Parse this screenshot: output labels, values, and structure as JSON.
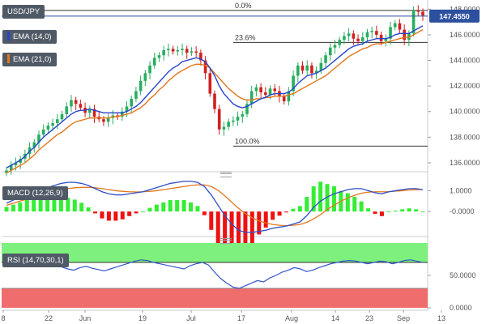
{
  "panel_labels": {
    "symbol": "USD/JPY",
    "ema_fast": "EMA (14,0)",
    "ema_slow": "EMA (21,0)",
    "macd": "MACD (12,26,9)",
    "rsi": "RSI (14,70,30,1)"
  },
  "colors": {
    "bull": "#27ae5f",
    "bear": "#d11f1f",
    "ema_fast": "#2744cc",
    "ema_slow": "#e2771c",
    "macd_line": "#2f4fc7",
    "signal_line": "#e2771c",
    "hist_pos": "#33ee33",
    "hist_neg": "#ee1111",
    "rsi_line": "#3355cc",
    "rsi_overbought": "#7df07d",
    "rsi_oversold": "#f06d6d",
    "price_tag": "#2c4f9e",
    "pill": "#4f5a66"
  },
  "chart_data": [
    {
      "type": "candlestick",
      "title": "USD/JPY",
      "y_axis_ticks": [
        "148.0000",
        "146.0000",
        "144.0000",
        "142.0000",
        "140.0000",
        "138.0000",
        "136.0000"
      ],
      "ylim": [
        135.3,
        148.4
      ],
      "current_price": "147.4550",
      "current_price_value": 147.455,
      "x_axis_ticks": [
        "8",
        "22",
        "Jun",
        "19",
        "Jul",
        "17",
        "Aug",
        "14",
        "23",
        "Sep",
        "13"
      ],
      "fibonacci": [
        {
          "label": "0.0%",
          "value": 147.9
        },
        {
          "label": "23.6%",
          "value": 145.4
        },
        {
          "label": "100.0%",
          "value": 137.3
        }
      ],
      "closes": [
        135.4,
        135.8,
        136.0,
        136.3,
        136.7,
        137.2,
        137.6,
        138.2,
        138.6,
        138.9,
        139.1,
        139.4,
        139.8,
        140.4,
        140.9,
        140.6,
        140.3,
        139.9,
        140.2,
        139.6,
        139.4,
        139.2,
        139.5,
        139.7,
        139.6,
        140.0,
        140.4,
        141.0,
        141.6,
        142.4,
        143.0,
        143.6,
        144.2,
        144.4,
        144.8,
        144.9,
        144.7,
        144.8,
        144.9,
        144.6,
        144.7,
        144.6,
        144.0,
        143.0,
        141.4,
        140.2,
        138.6,
        138.8,
        139.2,
        139.3,
        139.6,
        139.8,
        140.6,
        141.6,
        141.9,
        141.5,
        141.3,
        141.8,
        141.6,
        141.2,
        140.8,
        141.6,
        142.8,
        143.6,
        143.2,
        143.6,
        143.0,
        143.2,
        143.8,
        144.4,
        145.0,
        145.2,
        145.6,
        145.9,
        146.1,
        145.7,
        145.5,
        145.8,
        146.2,
        146.3,
        146.0,
        145.5,
        145.7,
        146.6,
        146.9,
        146.4,
        145.6,
        146.1,
        147.9,
        147.8,
        147.5
      ],
      "ema_14": [
        135.6,
        135.8,
        136.0,
        136.2,
        136.5,
        136.9,
        137.2,
        137.6,
        138.0,
        138.3,
        138.6,
        138.9,
        139.2,
        139.5,
        139.8,
        140.0,
        140.1,
        140.1,
        140.2,
        140.1,
        140.0,
        139.9,
        139.9,
        139.9,
        139.9,
        139.9,
        140.0,
        140.2,
        140.4,
        140.7,
        141.1,
        141.5,
        141.9,
        142.3,
        142.7,
        143.1,
        143.4,
        143.6,
        143.9,
        144.0,
        144.1,
        144.2,
        144.1,
        143.9,
        143.4,
        142.8,
        142.0,
        141.4,
        141.0,
        140.6,
        140.4,
        140.3,
        140.4,
        140.6,
        140.8,
        141.0,
        141.1,
        141.3,
        141.4,
        141.4,
        141.4,
        141.5,
        141.8,
        142.2,
        142.5,
        142.8,
        142.9,
        143.0,
        143.2,
        143.4,
        143.7,
        144.0,
        144.3,
        144.6,
        144.9,
        145.1,
        145.2,
        145.3,
        145.5,
        145.6,
        145.7,
        145.7,
        145.7,
        145.8,
        146.0,
        146.1,
        146.1,
        146.1,
        146.3,
        146.5,
        146.7
      ],
      "ema_21": [
        135.2,
        135.4,
        135.6,
        135.8,
        136.0,
        136.3,
        136.6,
        137.0,
        137.3,
        137.6,
        137.9,
        138.2,
        138.4,
        138.7,
        139.0,
        139.2,
        139.3,
        139.4,
        139.5,
        139.5,
        139.5,
        139.5,
        139.5,
        139.6,
        139.6,
        139.7,
        139.8,
        139.9,
        140.1,
        140.3,
        140.6,
        141.0,
        141.3,
        141.7,
        142.0,
        142.4,
        142.7,
        143.0,
        143.2,
        143.4,
        143.6,
        143.7,
        143.7,
        143.6,
        143.4,
        143.0,
        142.6,
        142.2,
        141.8,
        141.5,
        141.2,
        141.0,
        140.9,
        140.9,
        141.0,
        141.0,
        141.1,
        141.1,
        141.2,
        141.2,
        141.2,
        141.3,
        141.4,
        141.6,
        141.8,
        142.0,
        142.2,
        142.4,
        142.6,
        142.8,
        143.1,
        143.4,
        143.7,
        144.0,
        144.3,
        144.5,
        144.7,
        144.9,
        145.0,
        145.2,
        145.3,
        145.3,
        145.4,
        145.5,
        145.6,
        145.7,
        145.8,
        145.8,
        146.0,
        146.2,
        146.4
      ]
    },
    {
      "type": "line",
      "title": "MACD (12,26,9)",
      "y_axis_ticks": [
        "1.0000",
        "-0.0000"
      ],
      "series_values": {
        "macd": [
          0.4,
          0.55,
          0.7,
          0.85,
          0.95,
          1.05,
          1.15,
          1.25,
          1.35,
          1.4,
          1.4,
          1.35,
          1.25,
          1.1,
          0.95,
          0.85,
          0.8,
          0.8,
          0.85,
          0.9,
          0.95,
          1.05,
          1.15,
          1.25,
          1.35,
          1.4,
          1.45,
          1.45,
          1.4,
          1.2,
          0.8,
          0.3,
          -0.2,
          -0.6,
          -0.9,
          -1.0,
          -1.0,
          -0.95,
          -0.9,
          -0.8,
          -0.75,
          -0.7,
          -0.6,
          -0.5,
          -0.2,
          0.2,
          0.5,
          0.7,
          0.85,
          0.95,
          1.05,
          1.1,
          1.1,
          1.0,
          0.9,
          0.85,
          0.95,
          1.0,
          1.05,
          1.1,
          1.1,
          1.05
        ],
        "signal": [
          0.3,
          0.4,
          0.5,
          0.6,
          0.7,
          0.8,
          0.9,
          0.98,
          1.05,
          1.1,
          1.14,
          1.16,
          1.16,
          1.14,
          1.1,
          1.05,
          1.0,
          0.97,
          0.95,
          0.94,
          0.95,
          0.97,
          1.0,
          1.05,
          1.1,
          1.15,
          1.2,
          1.25,
          1.28,
          1.28,
          1.2,
          1.02,
          0.75,
          0.45,
          0.15,
          -0.1,
          -0.3,
          -0.45,
          -0.55,
          -0.62,
          -0.66,
          -0.68,
          -0.66,
          -0.62,
          -0.52,
          -0.35,
          -0.15,
          0.1,
          0.3,
          0.5,
          0.65,
          0.78,
          0.88,
          0.93,
          0.95,
          0.95,
          0.95,
          0.98,
          1.0,
          1.03,
          1.05,
          1.05
        ]
      }
    },
    {
      "type": "line",
      "title": "RSI (14,70,30,1)",
      "y_axis_ticks": [
        "50.0000",
        "0.0000"
      ],
      "ylim": [
        0,
        100
      ],
      "overbought": 70,
      "oversold": 30,
      "values": [
        68,
        70,
        67,
        65,
        68,
        70,
        71,
        69,
        66,
        63,
        60,
        58,
        62,
        64,
        61,
        59,
        57,
        60,
        63,
        66,
        69,
        72,
        74,
        73,
        70,
        68,
        66,
        64,
        62,
        60,
        65,
        68,
        70,
        66,
        55,
        45,
        38,
        32,
        30,
        34,
        38,
        42,
        40,
        46,
        50,
        55,
        58,
        62,
        60,
        56,
        58,
        62,
        65,
        68,
        70,
        72,
        73,
        72,
        70,
        68,
        70,
        72,
        71,
        68,
        70,
        73,
        74,
        72,
        70
      ]
    }
  ]
}
